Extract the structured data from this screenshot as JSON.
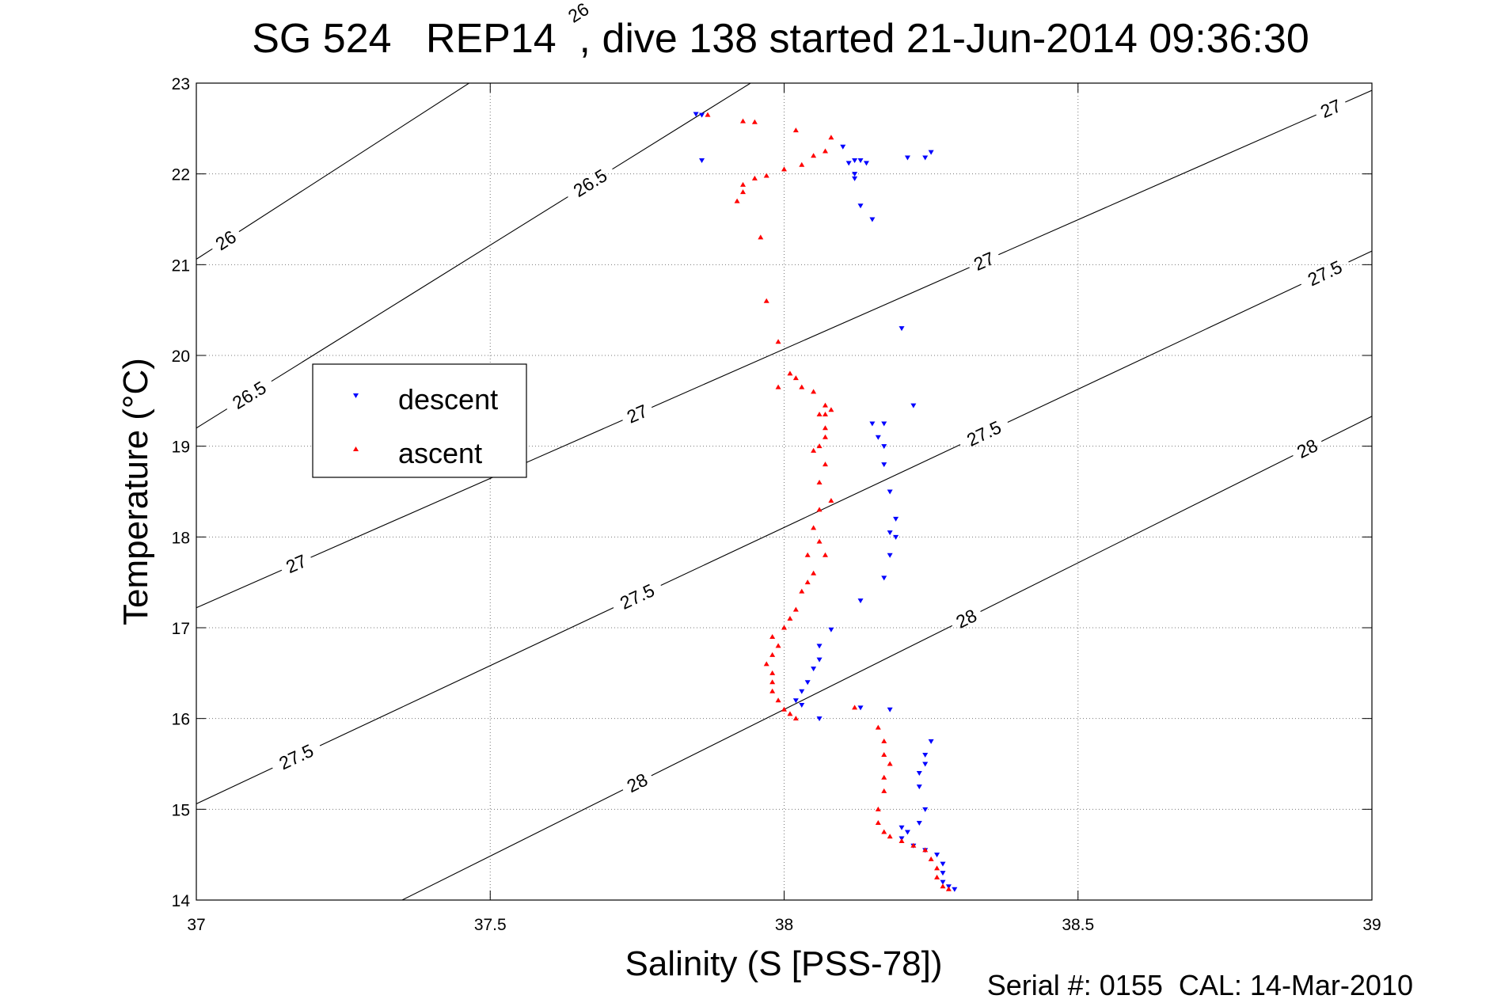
{
  "chart_data": {
    "type": "scatter",
    "title": "SG 524   REP14  , dive 138 started 21-Jun-2014 09:36:30",
    "xlabel": "Salinity (S [PSS-78])",
    "ylabel": "Temperature (°C)",
    "xlim": [
      37,
      39
    ],
    "ylim": [
      14,
      23
    ],
    "x_ticks": [
      "37",
      "37.5",
      "38",
      "38.5",
      "39"
    ],
    "y_ticks": [
      "14",
      "15",
      "16",
      "17",
      "18",
      "19",
      "20",
      "21",
      "22",
      "23"
    ],
    "grid": true,
    "legend_position": "left",
    "footer": "Serial #: 0155  CAL: 14-Mar-2010",
    "density_contours": [
      {
        "label": "26",
        "points": [
          [
            37,
            21.06
          ],
          [
            38,
            25.24
          ]
        ],
        "labels_at": [
          [
            37.05,
            21.25
          ],
          [
            37.65,
            22.7
          ]
        ]
      },
      {
        "label": "26.5",
        "points": [
          [
            37,
            19.2
          ],
          [
            39,
            27.26
          ]
        ],
        "labels_at": [
          [
            37.09,
            19.55
          ],
          [
            37.67,
            21.05
          ],
          [
            38.25,
            22.6
          ]
        ]
      },
      {
        "label": "27",
        "points": [
          [
            37,
            17.22
          ],
          [
            39,
            22.92
          ]
        ],
        "labels_at": [
          [
            37.17,
            17.75
          ],
          [
            37.75,
            19.5
          ],
          [
            38.34,
            21.1
          ],
          [
            38.93,
            22.68
          ]
        ]
      },
      {
        "label": "27.5",
        "points": [
          [
            37,
            15.06
          ],
          [
            39,
            21.15
          ]
        ],
        "labels_at": [
          [
            37.17,
            15.55
          ],
          [
            37.75,
            17.45
          ],
          [
            38.34,
            19.15
          ],
          [
            38.92,
            20.8
          ]
        ]
      },
      {
        "label": "28",
        "points": [
          [
            37.35,
            14.0
          ],
          [
            39,
            19.33
          ]
        ],
        "labels_at": [
          [
            37.75,
            15.3
          ],
          [
            38.31,
            17.15
          ],
          [
            38.89,
            18.85
          ]
        ]
      }
    ],
    "series": [
      {
        "name": "descent",
        "color": "#0000ff",
        "marker": "triangle-down",
        "points": [
          [
            37.85,
            22.66
          ],
          [
            37.86,
            22.65
          ],
          [
            37.86,
            22.15
          ],
          [
            38.1,
            22.3
          ],
          [
            38.11,
            22.12
          ],
          [
            38.12,
            22.15
          ],
          [
            38.13,
            22.15
          ],
          [
            38.14,
            22.12
          ],
          [
            38.12,
            22.0
          ],
          [
            38.12,
            21.95
          ],
          [
            38.21,
            22.18
          ],
          [
            38.24,
            22.18
          ],
          [
            38.25,
            22.24
          ],
          [
            38.13,
            21.65
          ],
          [
            38.15,
            21.5
          ],
          [
            38.2,
            20.3
          ],
          [
            38.22,
            19.45
          ],
          [
            38.15,
            19.25
          ],
          [
            38.17,
            19.25
          ],
          [
            38.16,
            19.1
          ],
          [
            38.17,
            19.0
          ],
          [
            38.17,
            18.8
          ],
          [
            38.18,
            18.5
          ],
          [
            38.19,
            18.2
          ],
          [
            38.18,
            18.05
          ],
          [
            38.19,
            18.0
          ],
          [
            38.18,
            17.8
          ],
          [
            38.17,
            17.55
          ],
          [
            38.13,
            17.3
          ],
          [
            38.08,
            16.98
          ],
          [
            38.06,
            16.8
          ],
          [
            38.06,
            16.65
          ],
          [
            38.05,
            16.55
          ],
          [
            38.04,
            16.4
          ],
          [
            38.03,
            16.3
          ],
          [
            38.02,
            16.2
          ],
          [
            38.03,
            16.15
          ],
          [
            38.06,
            16.0
          ],
          [
            38.13,
            16.12
          ],
          [
            38.18,
            16.1
          ],
          [
            38.25,
            15.75
          ],
          [
            38.24,
            15.6
          ],
          [
            38.24,
            15.5
          ],
          [
            38.23,
            15.4
          ],
          [
            38.23,
            15.25
          ],
          [
            38.24,
            15.0
          ],
          [
            38.23,
            14.85
          ],
          [
            38.2,
            14.8
          ],
          [
            38.21,
            14.75
          ],
          [
            38.2,
            14.68
          ],
          [
            38.22,
            14.6
          ],
          [
            38.24,
            14.55
          ],
          [
            38.26,
            14.5
          ],
          [
            38.27,
            14.4
          ],
          [
            38.27,
            14.3
          ],
          [
            38.27,
            14.2
          ],
          [
            38.28,
            14.15
          ],
          [
            38.29,
            14.12
          ]
        ]
      },
      {
        "name": "ascent",
        "color": "#ff0000",
        "marker": "triangle-up",
        "points": [
          [
            37.87,
            22.65
          ],
          [
            37.93,
            22.58
          ],
          [
            37.95,
            22.57
          ],
          [
            38.02,
            22.48
          ],
          [
            38.08,
            22.4
          ],
          [
            38.07,
            22.25
          ],
          [
            38.05,
            22.2
          ],
          [
            38.03,
            22.1
          ],
          [
            38.0,
            22.05
          ],
          [
            37.97,
            21.98
          ],
          [
            37.95,
            21.95
          ],
          [
            37.93,
            21.88
          ],
          [
            37.93,
            21.8
          ],
          [
            37.92,
            21.7
          ],
          [
            37.96,
            21.3
          ],
          [
            37.97,
            20.6
          ],
          [
            37.99,
            20.15
          ],
          [
            38.01,
            19.8
          ],
          [
            38.02,
            19.75
          ],
          [
            37.99,
            19.65
          ],
          [
            38.03,
            19.65
          ],
          [
            38.05,
            19.6
          ],
          [
            38.07,
            19.45
          ],
          [
            38.08,
            19.4
          ],
          [
            38.07,
            19.35
          ],
          [
            38.06,
            19.35
          ],
          [
            38.07,
            19.2
          ],
          [
            38.07,
            19.1
          ],
          [
            38.06,
            19.0
          ],
          [
            38.05,
            18.95
          ],
          [
            38.07,
            18.8
          ],
          [
            38.06,
            18.6
          ],
          [
            38.08,
            18.4
          ],
          [
            38.06,
            18.3
          ],
          [
            38.05,
            18.1
          ],
          [
            38.06,
            17.95
          ],
          [
            38.04,
            17.8
          ],
          [
            38.07,
            17.8
          ],
          [
            38.05,
            17.6
          ],
          [
            38.04,
            17.5
          ],
          [
            38.03,
            17.4
          ],
          [
            38.02,
            17.2
          ],
          [
            38.01,
            17.1
          ],
          [
            38.0,
            17.0
          ],
          [
            37.98,
            16.9
          ],
          [
            37.99,
            16.8
          ],
          [
            37.98,
            16.7
          ],
          [
            37.97,
            16.6
          ],
          [
            37.98,
            16.5
          ],
          [
            37.98,
            16.4
          ],
          [
            37.98,
            16.3
          ],
          [
            37.99,
            16.2
          ],
          [
            38.0,
            16.1
          ],
          [
            38.01,
            16.05
          ],
          [
            38.02,
            16.0
          ],
          [
            38.12,
            16.12
          ],
          [
            38.16,
            15.9
          ],
          [
            38.17,
            15.75
          ],
          [
            38.17,
            15.6
          ],
          [
            38.18,
            15.5
          ],
          [
            38.17,
            15.35
          ],
          [
            38.17,
            15.2
          ],
          [
            38.16,
            15.0
          ],
          [
            38.16,
            14.85
          ],
          [
            38.17,
            14.75
          ],
          [
            38.18,
            14.7
          ],
          [
            38.2,
            14.65
          ],
          [
            38.22,
            14.6
          ],
          [
            38.24,
            14.55
          ],
          [
            38.25,
            14.45
          ],
          [
            38.26,
            14.35
          ],
          [
            38.26,
            14.25
          ],
          [
            38.27,
            14.15
          ],
          [
            38.28,
            14.12
          ]
        ]
      }
    ]
  }
}
